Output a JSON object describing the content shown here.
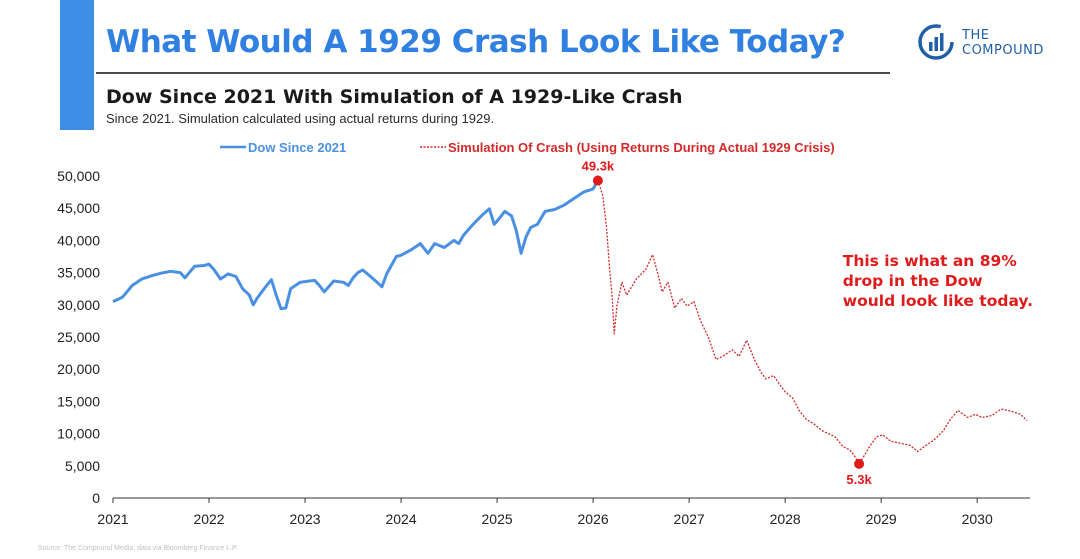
{
  "header": {
    "title": "What Would A 1929 Crash Look Like Today?",
    "subtitle": "Dow Since 2021 With Simulation of A 1929-Like Crash",
    "note": "Since 2021. Simulation calculated using actual returns during 1929."
  },
  "logo": {
    "line1": "THE",
    "line2": "COMPOUND",
    "icon": "bar-chart-circle-icon"
  },
  "source": "Source: The Compound Media, data via Bloomberg Finance L.P.",
  "colors": {
    "accent": "#3d8fe6",
    "title": "#2f80e0",
    "dow": "#4a90e2",
    "simulation": "#d42a2a",
    "annotation": "#e01b1b"
  },
  "chart_data": {
    "type": "line",
    "x_axis": {
      "min": 2021,
      "max": 2030.55,
      "ticks": [
        "2021",
        "2022",
        "2023",
        "2024",
        "2025",
        "2026",
        "2027",
        "2028",
        "2029",
        "2030"
      ]
    },
    "y_axis": {
      "min": 0,
      "max": 50000,
      "ticks": [
        "0",
        "5,000",
        "10,000",
        "15,000",
        "20,000",
        "25,000",
        "30,000",
        "35,000",
        "40,000",
        "45,000",
        "50,000"
      ]
    },
    "legend": {
      "position": "top-center",
      "entries": [
        "Dow Since 2021",
        "Simulation Of Crash (Using Returns During Actual 1929 Crisis)"
      ]
    },
    "grid": false,
    "series": [
      {
        "name": "Dow Since 2021",
        "style": "solid",
        "points": [
          [
            2021.0,
            30500
          ],
          [
            2021.1,
            31200
          ],
          [
            2021.2,
            33000
          ],
          [
            2021.3,
            34000
          ],
          [
            2021.4,
            34500
          ],
          [
            2021.5,
            34900
          ],
          [
            2021.6,
            35200
          ],
          [
            2021.7,
            35000
          ],
          [
            2021.75,
            34200
          ],
          [
            2021.85,
            36000
          ],
          [
            2021.95,
            36100
          ],
          [
            2022.0,
            36300
          ],
          [
            2022.05,
            35500
          ],
          [
            2022.12,
            34000
          ],
          [
            2022.2,
            34800
          ],
          [
            2022.28,
            34400
          ],
          [
            2022.35,
            32500
          ],
          [
            2022.42,
            31500
          ],
          [
            2022.46,
            30000
          ],
          [
            2022.5,
            31000
          ],
          [
            2022.6,
            33000
          ],
          [
            2022.65,
            33900
          ],
          [
            2022.7,
            31500
          ],
          [
            2022.75,
            29400
          ],
          [
            2022.8,
            29500
          ],
          [
            2022.85,
            32500
          ],
          [
            2022.95,
            33500
          ],
          [
            2023.0,
            33600
          ],
          [
            2023.1,
            33800
          ],
          [
            2023.15,
            33000
          ],
          [
            2023.2,
            32000
          ],
          [
            2023.3,
            33700
          ],
          [
            2023.4,
            33500
          ],
          [
            2023.45,
            33000
          ],
          [
            2023.5,
            34200
          ],
          [
            2023.55,
            35000
          ],
          [
            2023.6,
            35400
          ],
          [
            2023.65,
            34800
          ],
          [
            2023.75,
            33500
          ],
          [
            2023.8,
            32800
          ],
          [
            2023.85,
            34800
          ],
          [
            2023.95,
            37500
          ],
          [
            2024.0,
            37700
          ],
          [
            2024.1,
            38500
          ],
          [
            2024.2,
            39500
          ],
          [
            2024.28,
            38000
          ],
          [
            2024.35,
            39500
          ],
          [
            2024.45,
            38900
          ],
          [
            2024.55,
            40000
          ],
          [
            2024.6,
            39500
          ],
          [
            2024.65,
            40800
          ],
          [
            2024.75,
            42500
          ],
          [
            2024.85,
            44000
          ],
          [
            2024.92,
            44900
          ],
          [
            2024.97,
            42500
          ],
          [
            2025.0,
            43000
          ],
          [
            2025.08,
            44500
          ],
          [
            2025.15,
            43800
          ],
          [
            2025.2,
            41500
          ],
          [
            2025.25,
            38000
          ],
          [
            2025.3,
            40500
          ],
          [
            2025.35,
            42000
          ],
          [
            2025.42,
            42500
          ],
          [
            2025.5,
            44500
          ],
          [
            2025.6,
            44800
          ],
          [
            2025.7,
            45500
          ],
          [
            2025.8,
            46500
          ],
          [
            2025.9,
            47500
          ],
          [
            2026.0,
            48000
          ],
          [
            2026.05,
            49300
          ]
        ]
      },
      {
        "name": "Simulation Of Crash (Using Returns During Actual 1929 Crisis)",
        "style": "dashed",
        "points": [
          [
            2026.05,
            49300
          ],
          [
            2026.1,
            47000
          ],
          [
            2026.14,
            42000
          ],
          [
            2026.17,
            36000
          ],
          [
            2026.2,
            31000
          ],
          [
            2026.22,
            25500
          ],
          [
            2026.25,
            30000
          ],
          [
            2026.3,
            33500
          ],
          [
            2026.35,
            31500
          ],
          [
            2026.45,
            34000
          ],
          [
            2026.55,
            35500
          ],
          [
            2026.62,
            37800
          ],
          [
            2026.68,
            34500
          ],
          [
            2026.72,
            32000
          ],
          [
            2026.78,
            33500
          ],
          [
            2026.85,
            29500
          ],
          [
            2026.92,
            31000
          ],
          [
            2026.98,
            29800
          ],
          [
            2027.05,
            30500
          ],
          [
            2027.12,
            27500
          ],
          [
            2027.2,
            25000
          ],
          [
            2027.28,
            21500
          ],
          [
            2027.35,
            22000
          ],
          [
            2027.45,
            23000
          ],
          [
            2027.52,
            22000
          ],
          [
            2027.6,
            24500
          ],
          [
            2027.68,
            21500
          ],
          [
            2027.75,
            19500
          ],
          [
            2027.8,
            18500
          ],
          [
            2027.88,
            19000
          ],
          [
            2027.95,
            17500
          ],
          [
            2028.0,
            16500
          ],
          [
            2028.08,
            15500
          ],
          [
            2028.15,
            13500
          ],
          [
            2028.22,
            12200
          ],
          [
            2028.3,
            11500
          ],
          [
            2028.38,
            10500
          ],
          [
            2028.45,
            10000
          ],
          [
            2028.52,
            9500
          ],
          [
            2028.6,
            8000
          ],
          [
            2028.67,
            7500
          ],
          [
            2028.72,
            6600
          ],
          [
            2028.77,
            5300
          ],
          [
            2028.82,
            6500
          ],
          [
            2028.88,
            8000
          ],
          [
            2028.95,
            9500
          ],
          [
            2029.02,
            9800
          ],
          [
            2029.1,
            8800
          ],
          [
            2029.2,
            8500
          ],
          [
            2029.3,
            8200
          ],
          [
            2029.38,
            7200
          ],
          [
            2029.45,
            8000
          ],
          [
            2029.55,
            9000
          ],
          [
            2029.65,
            10500
          ],
          [
            2029.72,
            12200
          ],
          [
            2029.8,
            13600
          ],
          [
            2029.9,
            12500
          ],
          [
            2029.98,
            13000
          ],
          [
            2030.05,
            12500
          ],
          [
            2030.15,
            12800
          ],
          [
            2030.25,
            13800
          ],
          [
            2030.35,
            13500
          ],
          [
            2030.45,
            13000
          ],
          [
            2030.52,
            12000
          ]
        ]
      }
    ],
    "annotations": [
      {
        "text": "49.3k",
        "x": 2026.05,
        "y": 49300,
        "kind": "peak"
      },
      {
        "text": "5.3k",
        "x": 2028.77,
        "y": 5300,
        "kind": "trough"
      }
    ],
    "callout": {
      "lines": [
        "This is what an 89%",
        "drop in the Dow",
        "would look like today."
      ],
      "x": 2028.6,
      "y": 36000
    }
  }
}
